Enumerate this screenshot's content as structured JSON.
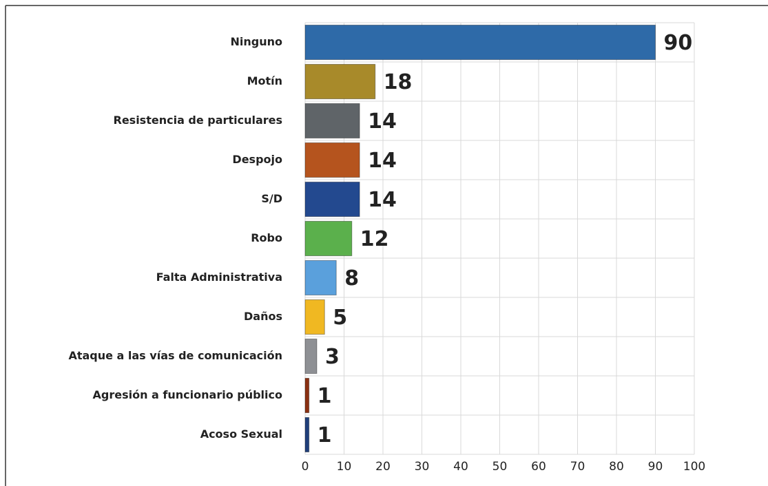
{
  "chart_data": {
    "type": "bar",
    "orientation": "horizontal",
    "categories": [
      "Ninguno",
      "Motín",
      "Resistencia de particulares",
      "Despojo",
      "S/D",
      "Robo",
      "Falta Administrativa",
      "Daños",
      "Ataque a las vías de comunicación",
      "Agresión a funcionario público",
      "Acoso Sexual"
    ],
    "values": [
      90,
      18,
      14,
      14,
      14,
      12,
      8,
      5,
      3,
      1,
      1
    ],
    "colors": [
      "#2e6aa8",
      "#a88a2a",
      "#5f6468",
      "#b5541e",
      "#23498f",
      "#5bb04c",
      "#5aa0dc",
      "#f0b822",
      "#8e9094",
      "#8a3012",
      "#1f3f7a"
    ],
    "xlim": [
      0,
      100
    ],
    "xticks": [
      0,
      10,
      20,
      30,
      40,
      50,
      60,
      70,
      80,
      90,
      100
    ],
    "grid": true
  }
}
